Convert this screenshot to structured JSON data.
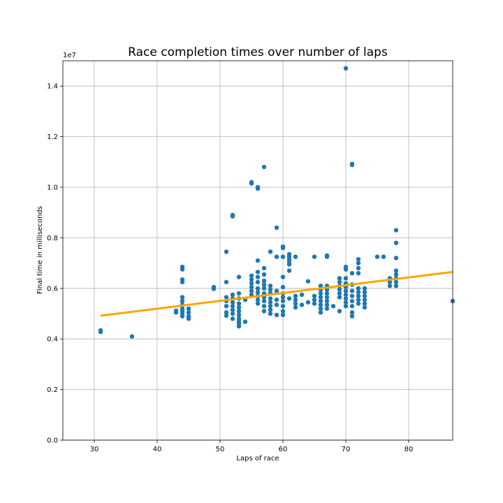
{
  "chart_data": {
    "type": "scatter",
    "title": "Race completion times over number of laps",
    "xlabel": "Laps of race",
    "ylabel": "Final time in milliseconds",
    "y_offset_label": "1e7",
    "xlim": [
      25,
      87
    ],
    "ylim": [
      0,
      15000000
    ],
    "x_ticks": [
      30,
      40,
      50,
      60,
      70,
      80
    ],
    "x_tick_labels": [
      "30",
      "40",
      "50",
      "60",
      "70",
      "80"
    ],
    "y_ticks": [
      0,
      2000000,
      4000000,
      6000000,
      8000000,
      10000000,
      12000000,
      14000000
    ],
    "y_tick_labels": [
      "0.0",
      "0.2",
      "0.4",
      "0.6",
      "0.8",
      "1.0",
      "1.2",
      "1.4"
    ],
    "grid": true,
    "point_color": "#1f77b4",
    "trend_color": "#ffa500",
    "trend_line": {
      "x": [
        31,
        87
      ],
      "y": [
        4920000,
        6650000
      ]
    },
    "points": [
      [
        31,
        4280000
      ],
      [
        31,
        4340000
      ],
      [
        36,
        4100000
      ],
      [
        43,
        5050000
      ],
      [
        43,
        5120000
      ],
      [
        44,
        4900000
      ],
      [
        44,
        5000000
      ],
      [
        44,
        5100000
      ],
      [
        44,
        5200000
      ],
      [
        44,
        5350000
      ],
      [
        44,
        5500000
      ],
      [
        44,
        5650000
      ],
      [
        44,
        6250000
      ],
      [
        44,
        6350000
      ],
      [
        44,
        6750000
      ],
      [
        44,
        6850000
      ],
      [
        45,
        4800000
      ],
      [
        45,
        4900000
      ],
      [
        45,
        5050000
      ],
      [
        45,
        5200000
      ],
      [
        49,
        5980000
      ],
      [
        49,
        6050000
      ],
      [
        51,
        4920000
      ],
      [
        51,
        5050000
      ],
      [
        51,
        5300000
      ],
      [
        51,
        5500000
      ],
      [
        51,
        5650000
      ],
      [
        51,
        6250000
      ],
      [
        51,
        7450000
      ],
      [
        52,
        4800000
      ],
      [
        52,
        5000000
      ],
      [
        52,
        5150000
      ],
      [
        52,
        5300000
      ],
      [
        52,
        5450000
      ],
      [
        52,
        5600000
      ],
      [
        52,
        5750000
      ],
      [
        52,
        8850000
      ],
      [
        52,
        8900000
      ],
      [
        53,
        4500000
      ],
      [
        53,
        4600000
      ],
      [
        53,
        4700000
      ],
      [
        53,
        4800000
      ],
      [
        53,
        4950000
      ],
      [
        53,
        5100000
      ],
      [
        53,
        5250000
      ],
      [
        53,
        5400000
      ],
      [
        53,
        5600000
      ],
      [
        53,
        5800000
      ],
      [
        53,
        6450000
      ],
      [
        54,
        4680000
      ],
      [
        54,
        5550000
      ],
      [
        55,
        5750000
      ],
      [
        55,
        5900000
      ],
      [
        55,
        6050000
      ],
      [
        55,
        6200000
      ],
      [
        55,
        6350000
      ],
      [
        55,
        6500000
      ],
      [
        55,
        10150000
      ],
      [
        55,
        10200000
      ],
      [
        56,
        5400000
      ],
      [
        56,
        5550000
      ],
      [
        56,
        5700000
      ],
      [
        56,
        5850000
      ],
      [
        56,
        6000000
      ],
      [
        56,
        6250000
      ],
      [
        56,
        6450000
      ],
      [
        56,
        6650000
      ],
      [
        56,
        7100000
      ],
      [
        56,
        9950000
      ],
      [
        56,
        10000000
      ],
      [
        57,
        5100000
      ],
      [
        57,
        5300000
      ],
      [
        57,
        5500000
      ],
      [
        57,
        5650000
      ],
      [
        57,
        5800000
      ],
      [
        57,
        6000000
      ],
      [
        57,
        6150000
      ],
      [
        57,
        6300000
      ],
      [
        57,
        6550000
      ],
      [
        57,
        6800000
      ],
      [
        57,
        10800000
      ],
      [
        58,
        5000000
      ],
      [
        58,
        5150000
      ],
      [
        58,
        5300000
      ],
      [
        58,
        5450000
      ],
      [
        58,
        5600000
      ],
      [
        58,
        5800000
      ],
      [
        58,
        5950000
      ],
      [
        58,
        6100000
      ],
      [
        58,
        7450000
      ],
      [
        59,
        4950000
      ],
      [
        59,
        5350000
      ],
      [
        59,
        5550000
      ],
      [
        59,
        5900000
      ],
      [
        59,
        7250000
      ],
      [
        59,
        8400000
      ],
      [
        60,
        4950000
      ],
      [
        60,
        5100000
      ],
      [
        60,
        5300000
      ],
      [
        60,
        5500000
      ],
      [
        60,
        5650000
      ],
      [
        60,
        5800000
      ],
      [
        60,
        6050000
      ],
      [
        60,
        6450000
      ],
      [
        60,
        7250000
      ],
      [
        60,
        7600000
      ],
      [
        60,
        7650000
      ],
      [
        61,
        5600000
      ],
      [
        61,
        6700000
      ],
      [
        61,
        6950000
      ],
      [
        61,
        7050000
      ],
      [
        61,
        7150000
      ],
      [
        61,
        7250000
      ],
      [
        61,
        7350000
      ],
      [
        62,
        5250000
      ],
      [
        62,
        5400000
      ],
      [
        62,
        5550000
      ],
      [
        62,
        5700000
      ],
      [
        62,
        7250000
      ],
      [
        63,
        5350000
      ],
      [
        63,
        5750000
      ],
      [
        64,
        5450000
      ],
      [
        64,
        6280000
      ],
      [
        65,
        5400000
      ],
      [
        65,
        5550000
      ],
      [
        65,
        5700000
      ],
      [
        65,
        7250000
      ],
      [
        66,
        5050000
      ],
      [
        66,
        5200000
      ],
      [
        66,
        5350000
      ],
      [
        66,
        5500000
      ],
      [
        66,
        5650000
      ],
      [
        66,
        5800000
      ],
      [
        66,
        5950000
      ],
      [
        66,
        6100000
      ],
      [
        67,
        5200000
      ],
      [
        67,
        5350000
      ],
      [
        67,
        5500000
      ],
      [
        67,
        5650000
      ],
      [
        67,
        5800000
      ],
      [
        67,
        5950000
      ],
      [
        67,
        6100000
      ],
      [
        67,
        7250000
      ],
      [
        67,
        7300000
      ],
      [
        68,
        5300000
      ],
      [
        69,
        5100000
      ],
      [
        69,
        5650000
      ],
      [
        69,
        5800000
      ],
      [
        69,
        5950000
      ],
      [
        69,
        6100000
      ],
      [
        69,
        6250000
      ],
      [
        69,
        6400000
      ],
      [
        70,
        5300000
      ],
      [
        70,
        5450000
      ],
      [
        70,
        5600000
      ],
      [
        70,
        5750000
      ],
      [
        70,
        5900000
      ],
      [
        70,
        6050000
      ],
      [
        70,
        6200000
      ],
      [
        70,
        6400000
      ],
      [
        70,
        6750000
      ],
      [
        70,
        6850000
      ],
      [
        70,
        14700000
      ],
      [
        71,
        4900000
      ],
      [
        71,
        5050000
      ],
      [
        71,
        5300000
      ],
      [
        71,
        5500000
      ],
      [
        71,
        5700000
      ],
      [
        71,
        5900000
      ],
      [
        71,
        6150000
      ],
      [
        71,
        6600000
      ],
      [
        71,
        10880000
      ],
      [
        71,
        10920000
      ],
      [
        72,
        5400000
      ],
      [
        72,
        5550000
      ],
      [
        72,
        5700000
      ],
      [
        72,
        5850000
      ],
      [
        72,
        6000000
      ],
      [
        72,
        6600000
      ],
      [
        72,
        6800000
      ],
      [
        72,
        7000000
      ],
      [
        72,
        7150000
      ],
      [
        73,
        5250000
      ],
      [
        73,
        5400000
      ],
      [
        73,
        5550000
      ],
      [
        73,
        5700000
      ],
      [
        73,
        5850000
      ],
      [
        73,
        6000000
      ],
      [
        75,
        7250000
      ],
      [
        76,
        7250000
      ],
      [
        77,
        6100000
      ],
      [
        77,
        6250000
      ],
      [
        77,
        6400000
      ],
      [
        78,
        6100000
      ],
      [
        78,
        6250000
      ],
      [
        78,
        6400000
      ],
      [
        78,
        6550000
      ],
      [
        78,
        6700000
      ],
      [
        78,
        7200000
      ],
      [
        78,
        7800000
      ],
      [
        78,
        8300000
      ],
      [
        87,
        5500000
      ]
    ]
  }
}
